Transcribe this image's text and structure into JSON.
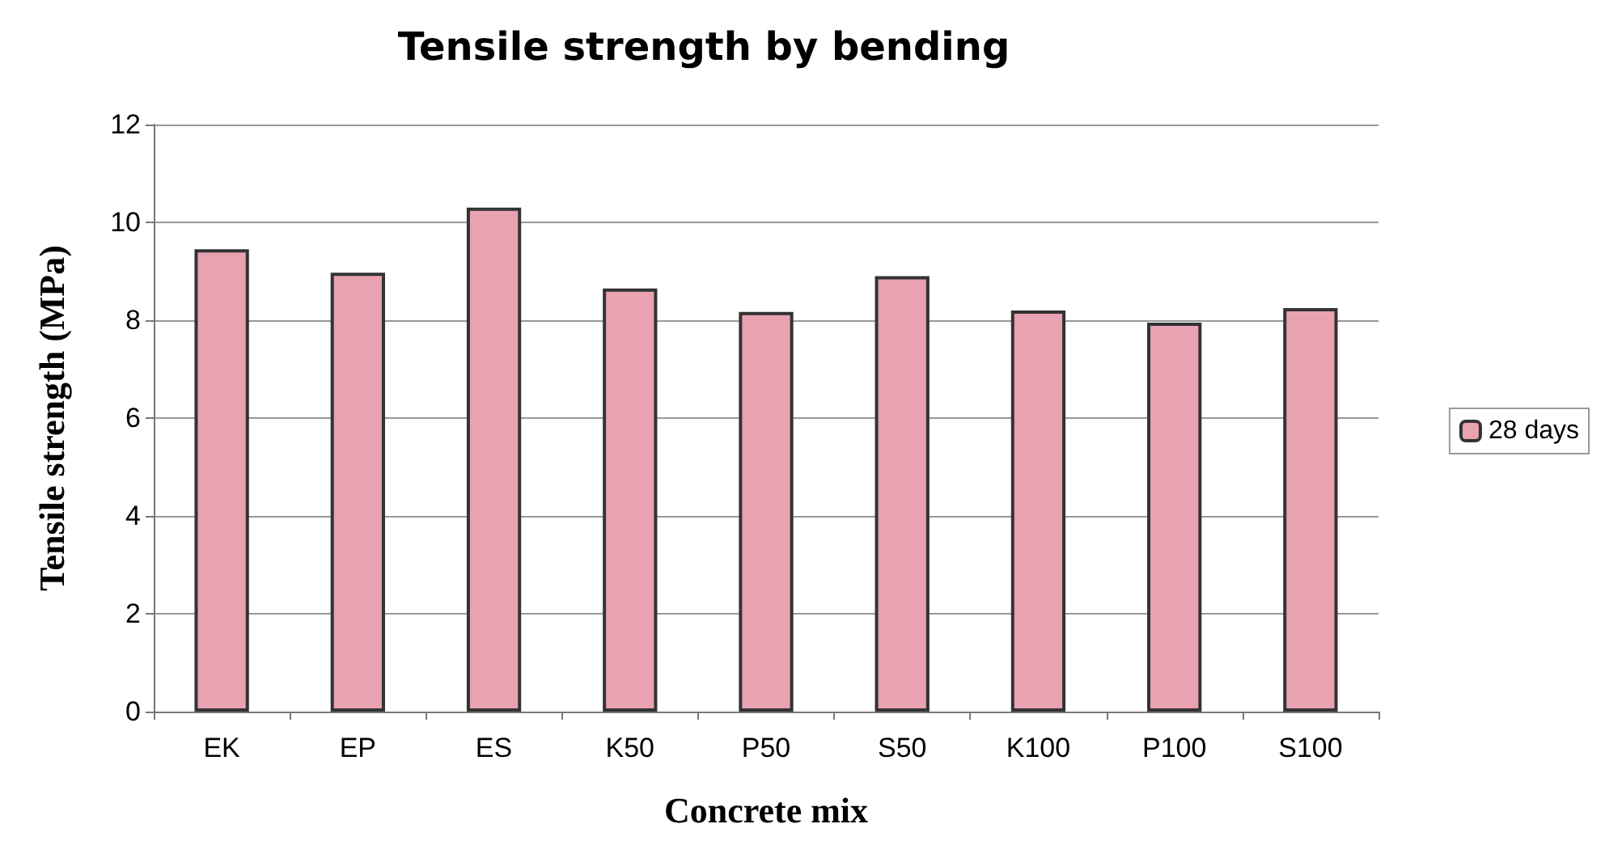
{
  "chart_data": {
    "type": "bar",
    "title": "Tensile strength by bending",
    "xlabel": "Concrete mix",
    "ylabel": "Tensile strength (MPa)",
    "categories": [
      "EK",
      "EP",
      "ES",
      "K50",
      "P50",
      "S50",
      "K100",
      "P100",
      "S100"
    ],
    "series": [
      {
        "name": "28 days",
        "color": "#e8a2b2",
        "values": [
          9.45,
          8.97,
          10.3,
          8.65,
          8.17,
          8.9,
          8.2,
          7.95,
          8.25
        ]
      }
    ],
    "ylim": [
      0,
      12
    ],
    "yticks": [
      0,
      2,
      4,
      6,
      8,
      10,
      12
    ],
    "grid": "y",
    "legend": "right"
  }
}
